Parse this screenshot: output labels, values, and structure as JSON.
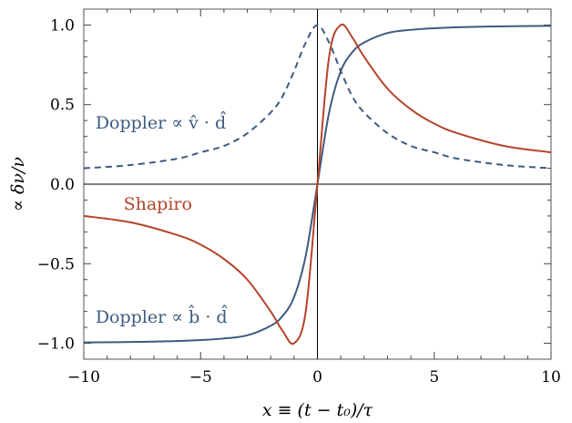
{
  "chart_data": {
    "type": "line",
    "title": "",
    "xlabel": "x ≡ (t − t₀)/τ",
    "ylabel": "∝ δν/ν",
    "xlim": [
      -10,
      10
    ],
    "ylim": [
      -1.1,
      1.1
    ],
    "x_ticks": [
      -10,
      -5,
      0,
      5,
      10
    ],
    "x_tick_labels": [
      "−10",
      "−5",
      "0",
      "5",
      "10"
    ],
    "y_ticks": [
      -1.0,
      -0.5,
      0.0,
      0.5,
      1.0
    ],
    "y_tick_labels": [
      "−1.0",
      "−0.5",
      "0.0",
      "0.5",
      "1.0"
    ],
    "grid": false,
    "colors": {
      "blue": "#3d5a80",
      "red": "#b5432a",
      "axis": "#000000",
      "frame": "#555555"
    },
    "series": [
      {
        "label": "Doppler ∝ v̂ · d̂",
        "style": "dashed",
        "color": "#3d5a80",
        "x": [
          -10,
          -8,
          -6,
          -5,
          -4,
          -3,
          -2,
          -1.5,
          -1,
          -0.5,
          0,
          0.5,
          1,
          1.5,
          2,
          3,
          4,
          5,
          6,
          8,
          10
        ],
        "y": [
          0.1,
          0.12,
          0.16,
          0.2,
          0.24,
          0.32,
          0.45,
          0.55,
          0.71,
          0.89,
          1.0,
          0.89,
          0.71,
          0.55,
          0.45,
          0.32,
          0.24,
          0.2,
          0.16,
          0.12,
          0.1
        ]
      },
      {
        "label": "Doppler ∝ b̂ · d̂",
        "style": "solid",
        "color": "#3d5a80",
        "x": [
          -10,
          -8,
          -6,
          -5,
          -4,
          -3,
          -2,
          -1.5,
          -1,
          -0.5,
          0,
          0.5,
          1,
          1.5,
          2,
          3,
          4,
          5,
          6,
          8,
          10
        ],
        "y": [
          -0.995,
          -0.992,
          -0.986,
          -0.98,
          -0.97,
          -0.95,
          -0.89,
          -0.83,
          -0.71,
          -0.45,
          0.0,
          0.45,
          0.71,
          0.83,
          0.89,
          0.95,
          0.97,
          0.98,
          0.986,
          0.992,
          0.995
        ]
      },
      {
        "label": "Shapiro",
        "style": "solid",
        "color": "#b5432a",
        "x": [
          -10,
          -8,
          -6,
          -5,
          -4,
          -3,
          -2,
          -1.5,
          -1,
          -0.5,
          0,
          0.5,
          1,
          1.5,
          2,
          3,
          4,
          5,
          6,
          8,
          10
        ],
        "y": [
          -0.2,
          -0.24,
          -0.32,
          -0.38,
          -0.47,
          -0.6,
          -0.8,
          -0.92,
          -1.0,
          -0.8,
          0.0,
          0.8,
          1.0,
          0.92,
          0.8,
          0.6,
          0.47,
          0.38,
          0.32,
          0.24,
          0.2
        ]
      }
    ],
    "annotations": [
      {
        "text": "Doppler ∝ v̂ · d̂",
        "color": "#3d5a80",
        "x": -9.5,
        "y": 0.35
      },
      {
        "text": "Shapiro",
        "color": "#b5432a",
        "x": -8.3,
        "y": -0.16
      },
      {
        "text": "Doppler ∝ b̂ · d̂",
        "color": "#3d5a80",
        "x": -9.5,
        "y": -0.87
      }
    ]
  }
}
